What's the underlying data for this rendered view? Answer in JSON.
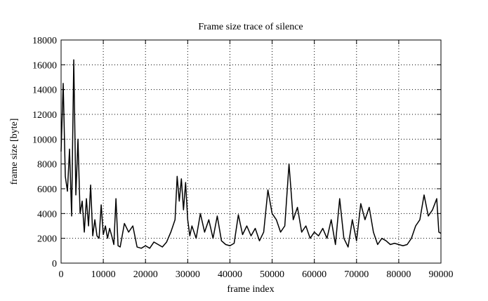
{
  "chart_data": {
    "type": "line",
    "title": "Frame size trace of silence",
    "xlabel": "frame index",
    "ylabel": "frame size [byte]",
    "xlim": [
      0,
      90000
    ],
    "xticks": [
      0,
      10000,
      20000,
      30000,
      40000,
      50000,
      60000,
      70000,
      80000,
      90000
    ],
    "ylim": [
      0,
      18000
    ],
    "yticks": [
      0,
      2000,
      4000,
      6000,
      8000,
      10000,
      12000,
      14000,
      16000,
      18000
    ],
    "grid": true,
    "series": [
      {
        "color": "#000000",
        "x": [
          0,
          500,
          1000,
          1500,
          2000,
          2500,
          3000,
          3500,
          4000,
          4500,
          5000,
          5500,
          6000,
          6500,
          7000,
          7500,
          8000,
          8500,
          9000,
          9500,
          10000,
          10500,
          11000,
          11500,
          12000,
          12500,
          13000,
          13500,
          14000,
          15000,
          16000,
          17000,
          18000,
          19000,
          20000,
          21000,
          22000,
          23000,
          24000,
          25000,
          26000,
          27000,
          27500,
          28000,
          28500,
          29000,
          29500,
          30000,
          30500,
          31000,
          32000,
          33000,
          34000,
          35000,
          36000,
          37000,
          38000,
          39000,
          40000,
          41000,
          42000,
          43000,
          44000,
          45000,
          46000,
          47000,
          48000,
          49000,
          50000,
          51000,
          52000,
          53000,
          54000,
          55000,
          56000,
          57000,
          58000,
          59000,
          60000,
          61000,
          62000,
          63000,
          64000,
          65000,
          66000,
          67000,
          68000,
          69000,
          70000,
          71000,
          72000,
          73000,
          74000,
          75000,
          76000,
          77000,
          78000,
          79000,
          80000,
          81000,
          82000,
          83000,
          84000,
          85000,
          86000,
          87000,
          88000,
          89000,
          89500,
          90000
        ],
        "values": [
          9000,
          14500,
          7000,
          5800,
          9200,
          3800,
          16400,
          5500,
          10000,
          4000,
          5000,
          2500,
          5200,
          3000,
          6300,
          2200,
          3500,
          2200,
          2000,
          4700,
          2300,
          3000,
          2000,
          2800,
          2200,
          1500,
          5200,
          1400,
          1300,
          3200,
          2500,
          3000,
          1300,
          1200,
          1400,
          1200,
          1700,
          1500,
          1300,
          1700,
          2500,
          3500,
          7000,
          5000,
          6800,
          4300,
          6500,
          3500,
          2200,
          3000,
          2000,
          4000,
          2500,
          3500,
          2000,
          3800,
          1800,
          1500,
          1400,
          1600,
          3900,
          2300,
          3000,
          2200,
          2800,
          1800,
          2500,
          5900,
          4000,
          3500,
          2500,
          3000,
          8000,
          3500,
          4500,
          2500,
          3000,
          2000,
          2500,
          2200,
          2800,
          2000,
          3500,
          1500,
          5200,
          2000,
          1300,
          3500,
          1800,
          4800,
          3500,
          4500,
          2500,
          1500,
          2000,
          1800,
          1500,
          1600,
          1500,
          1400,
          1500,
          2000,
          3000,
          3500,
          5500,
          3800,
          4300,
          5200,
          2500,
          2400
        ]
      }
    ]
  }
}
